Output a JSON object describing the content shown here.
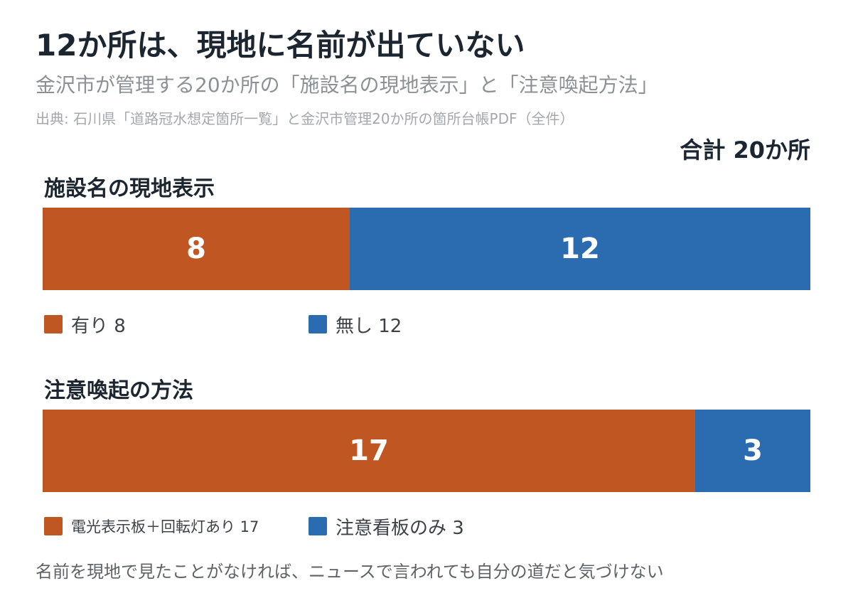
{
  "title": "12か所は、現地に名前が出ていない",
  "subtitle": "金沢市が管理する20か所の「施設名の現地表示」と「注意喚起方法」",
  "source": "出典: 石川県「道路冠水想定箇所一覧」と金沢市管理20か所の箇所台帳PDF（全件）",
  "total_label": "合計 20か所",
  "footnote": "名前を現地で見たことがなければ、ニュースで言われても自分の道だと気づけない",
  "colors": {
    "orange": "#c05722",
    "blue": "#2b6cb0"
  },
  "chart_data": [
    {
      "type": "bar",
      "orientation": "horizontal-stacked",
      "title": "施設名の現地表示",
      "total": 20,
      "series": [
        {
          "name": "有り",
          "value": 8,
          "color": "#c05722",
          "legend": "有り 8"
        },
        {
          "name": "無し",
          "value": 12,
          "color": "#2b6cb0",
          "legend": "無し 12"
        }
      ]
    },
    {
      "type": "bar",
      "orientation": "horizontal-stacked",
      "title": "注意喚起の方法",
      "total": 20,
      "series": [
        {
          "name": "電光表示板＋回転灯あり",
          "value": 17,
          "color": "#c05722",
          "legend": "電光表示板＋回転灯あり 17"
        },
        {
          "name": "注意看板のみ",
          "value": 3,
          "color": "#2b6cb0",
          "legend": "注意看板のみ 3"
        }
      ]
    }
  ]
}
